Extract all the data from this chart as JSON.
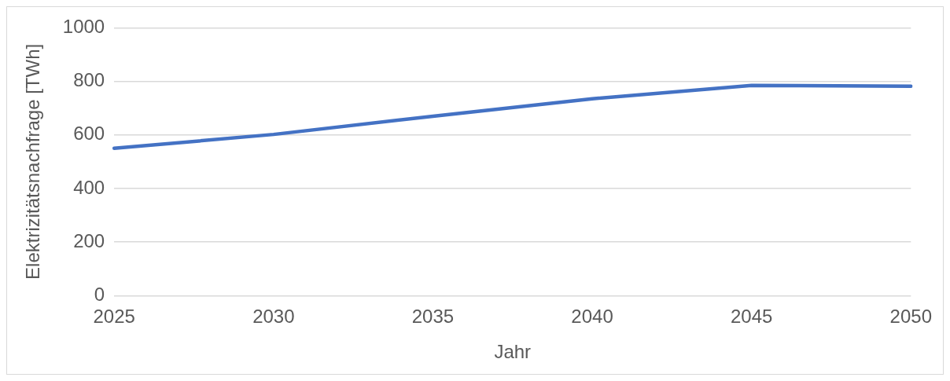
{
  "chart_data": {
    "type": "line",
    "xlabel": "Jahr",
    "ylabel": "Elektrizitätsnachfrage [TWh]",
    "categories": [
      "2025",
      "2030",
      "2035",
      "2040",
      "2045",
      "2050"
    ],
    "series": [
      {
        "color": "#4472c4",
        "values": [
          550,
          602,
          670,
          735,
          785,
          782
        ]
      }
    ],
    "ylim": [
      0,
      1000
    ],
    "yticks": [
      0,
      200,
      400,
      600,
      800,
      1000
    ],
    "grid": "y",
    "legend": false,
    "marker": "none",
    "line_style": "solid"
  }
}
